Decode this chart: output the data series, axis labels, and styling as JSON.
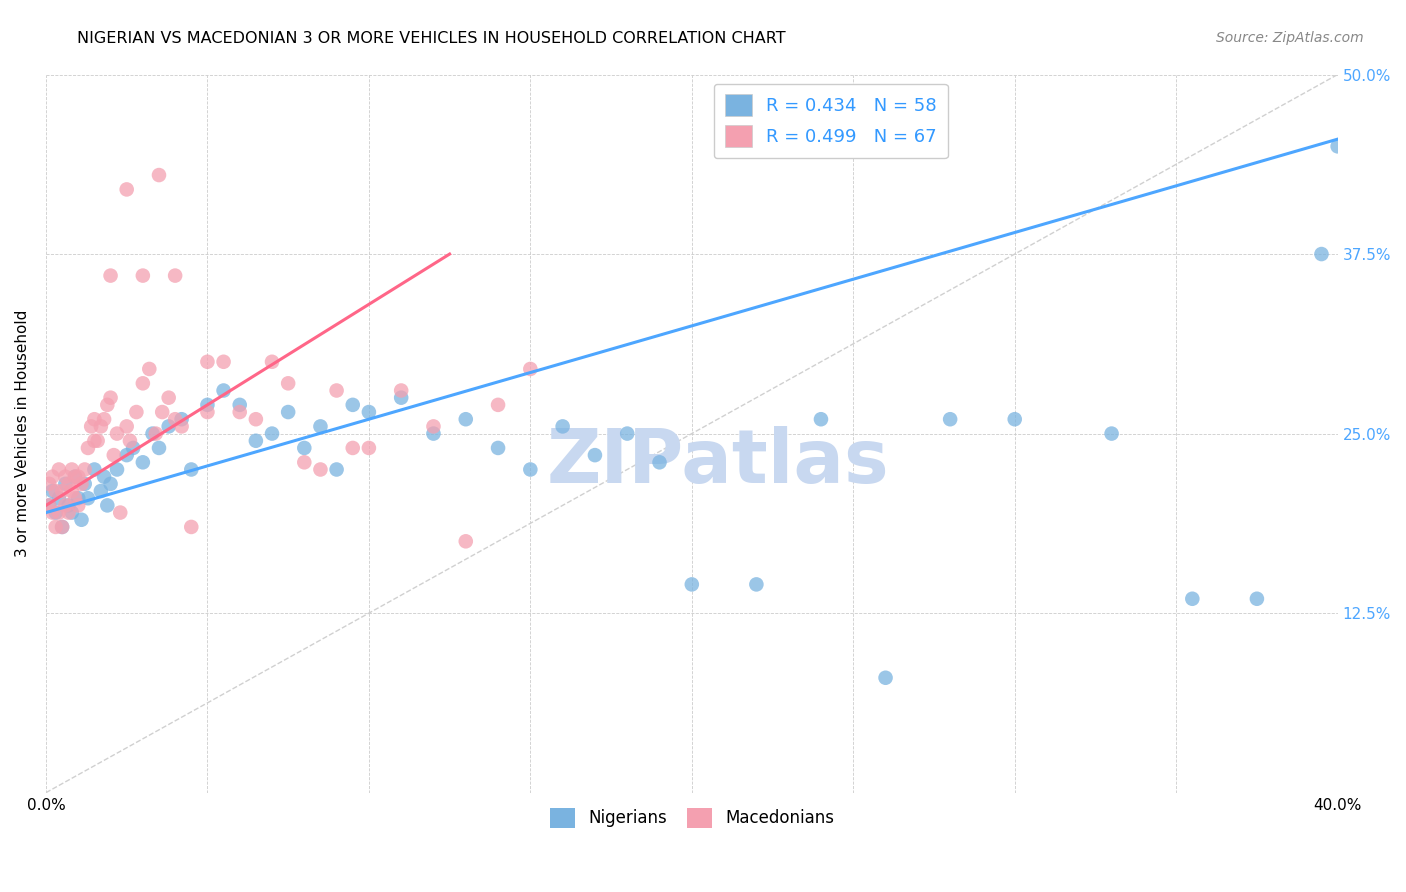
{
  "title": "NIGERIAN VS MACEDONIAN 3 OR MORE VEHICLES IN HOUSEHOLD CORRELATION CHART",
  "source": "Source: ZipAtlas.com",
  "ylabel": "3 or more Vehicles in Household",
  "xlim": [
    0.0,
    0.4
  ],
  "ylim": [
    0.0,
    0.5
  ],
  "xticks": [
    0.0,
    0.05,
    0.1,
    0.15,
    0.2,
    0.25,
    0.3,
    0.35,
    0.4
  ],
  "yticks": [
    0.0,
    0.125,
    0.25,
    0.375,
    0.5
  ],
  "nigerian_color": "#7ab3e0",
  "macedonian_color": "#f4a0b0",
  "nigerian_R": 0.434,
  "nigerian_N": 58,
  "macedonian_R": 0.499,
  "macedonian_N": 67,
  "watermark": "ZIPatlas",
  "watermark_color": "#c8d8f0",
  "legend_label_nigerian": "Nigerians",
  "legend_label_macedonian": "Macedonians",
  "nigerian_line_color": "#4da6ff",
  "macedonian_line_color": "#ff6688",
  "ref_line_color": "#d0d0d0",
  "nigerian_line_x": [
    0.0,
    0.4
  ],
  "nigerian_line_y": [
    0.195,
    0.455
  ],
  "macedonian_line_x": [
    0.0,
    0.125
  ],
  "macedonian_line_y": [
    0.2,
    0.375
  ],
  "nigerian_x": [
    0.001,
    0.002,
    0.003,
    0.004,
    0.005,
    0.006,
    0.007,
    0.008,
    0.009,
    0.01,
    0.011,
    0.012,
    0.013,
    0.015,
    0.017,
    0.018,
    0.019,
    0.02,
    0.022,
    0.025,
    0.027,
    0.03,
    0.033,
    0.035,
    0.038,
    0.042,
    0.045,
    0.05,
    0.055,
    0.06,
    0.065,
    0.07,
    0.075,
    0.08,
    0.085,
    0.09,
    0.095,
    0.1,
    0.11,
    0.12,
    0.13,
    0.14,
    0.15,
    0.16,
    0.17,
    0.18,
    0.19,
    0.2,
    0.22,
    0.24,
    0.26,
    0.28,
    0.3,
    0.33,
    0.355,
    0.375,
    0.395,
    0.4
  ],
  "nigerian_y": [
    0.2,
    0.21,
    0.195,
    0.205,
    0.185,
    0.215,
    0.2,
    0.195,
    0.22,
    0.205,
    0.19,
    0.215,
    0.205,
    0.225,
    0.21,
    0.22,
    0.2,
    0.215,
    0.225,
    0.235,
    0.24,
    0.23,
    0.25,
    0.24,
    0.255,
    0.26,
    0.225,
    0.27,
    0.28,
    0.27,
    0.245,
    0.25,
    0.265,
    0.24,
    0.255,
    0.225,
    0.27,
    0.265,
    0.275,
    0.25,
    0.26,
    0.24,
    0.225,
    0.255,
    0.235,
    0.25,
    0.23,
    0.145,
    0.145,
    0.26,
    0.08,
    0.26,
    0.26,
    0.25,
    0.135,
    0.135,
    0.375,
    0.45
  ],
  "macedonian_x": [
    0.001,
    0.001,
    0.002,
    0.002,
    0.003,
    0.003,
    0.004,
    0.004,
    0.005,
    0.005,
    0.006,
    0.006,
    0.007,
    0.007,
    0.008,
    0.008,
    0.009,
    0.009,
    0.01,
    0.01,
    0.011,
    0.012,
    0.013,
    0.014,
    0.015,
    0.015,
    0.016,
    0.017,
    0.018,
    0.019,
    0.02,
    0.021,
    0.022,
    0.023,
    0.025,
    0.026,
    0.028,
    0.03,
    0.032,
    0.034,
    0.036,
    0.038,
    0.04,
    0.042,
    0.045,
    0.05,
    0.055,
    0.06,
    0.065,
    0.07,
    0.075,
    0.08,
    0.085,
    0.09,
    0.095,
    0.1,
    0.11,
    0.12,
    0.13,
    0.14,
    0.15,
    0.02,
    0.025,
    0.03,
    0.035,
    0.04,
    0.05
  ],
  "macedonian_y": [
    0.2,
    0.215,
    0.195,
    0.22,
    0.185,
    0.21,
    0.195,
    0.225,
    0.185,
    0.21,
    0.2,
    0.22,
    0.215,
    0.195,
    0.21,
    0.225,
    0.205,
    0.22,
    0.2,
    0.22,
    0.215,
    0.225,
    0.24,
    0.255,
    0.245,
    0.26,
    0.245,
    0.255,
    0.26,
    0.27,
    0.275,
    0.235,
    0.25,
    0.195,
    0.255,
    0.245,
    0.265,
    0.285,
    0.295,
    0.25,
    0.265,
    0.275,
    0.26,
    0.255,
    0.185,
    0.265,
    0.3,
    0.265,
    0.26,
    0.3,
    0.285,
    0.23,
    0.225,
    0.28,
    0.24,
    0.24,
    0.28,
    0.255,
    0.175,
    0.27,
    0.295,
    0.36,
    0.42,
    0.36,
    0.43,
    0.36,
    0.3
  ]
}
